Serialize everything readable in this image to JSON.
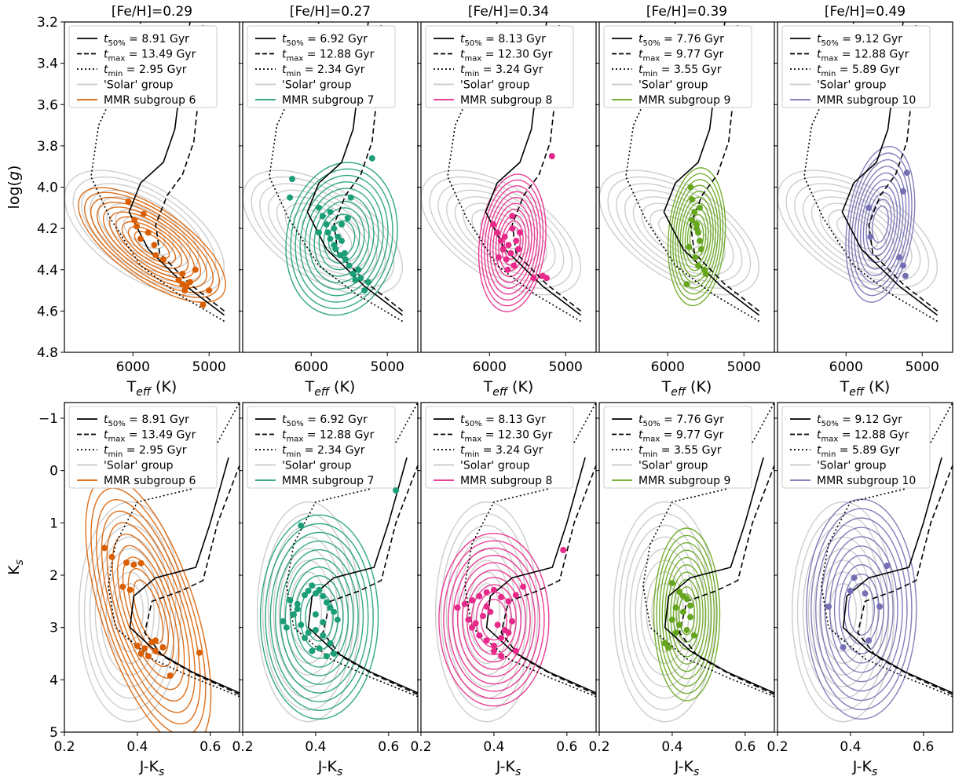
{
  "figure": {
    "tick_labels": {
      "logg_y": [
        "3.2",
        "3.4",
        "3.6",
        "3.8",
        "4.0",
        "4.2",
        "4.4",
        "4.6",
        "4.8"
      ],
      "teff_x": [
        "6000",
        "5000"
      ],
      "ks_y": [
        "−1",
        "0",
        "1",
        "2",
        "3",
        "4",
        "5"
      ],
      "jk_x": [
        "0.2",
        "0.4",
        "0.6"
      ]
    }
  },
  "chart_data": [
    {
      "type": "scatter",
      "row": "top",
      "title": "[Fe/H]=0.29",
      "xlabel": "T_eff (K)",
      "ylabel": "log(g)",
      "xlim": [
        6900,
        4600
      ],
      "ylim": [
        4.8,
        3.2
      ],
      "colors": {
        "subgroup": "#d95f02",
        "solar": "#c8c8c8",
        "iso": "#000000"
      },
      "legend": {
        "position": "top-left",
        "entries": [
          "t_50% = 8.91 Gyr",
          "t_max = 13.49 Gyr",
          "t_min = 2.95 Gyr",
          "'Solar' group",
          "MMR subgroup 6"
        ]
      },
      "series": [
        {
          "name": "MMR subgroup 6",
          "kind": "points",
          "x": [
            6060,
            5980,
            5860,
            5950,
            5900,
            5800,
            5720,
            5400,
            5350,
            5300,
            5350,
            5320,
            5250,
            5180,
            5000,
            5080,
            5600,
            5700
          ],
          "y": [
            4.07,
            4.16,
            4.13,
            4.19,
            4.25,
            4.22,
            4.28,
            4.45,
            4.47,
            4.48,
            4.42,
            4.5,
            4.46,
            4.4,
            4.5,
            4.57,
            4.35,
            4.33
          ]
        }
      ]
    },
    {
      "type": "scatter",
      "row": "top",
      "title": "[Fe/H]=0.27",
      "xlabel": "T_eff (K)",
      "ylabel": "",
      "xlim": [
        6900,
        4600
      ],
      "ylim": [
        4.8,
        3.2
      ],
      "colors": {
        "subgroup": "#1b9e77",
        "solar": "#c8c8c8",
        "iso": "#000000"
      },
      "legend": {
        "position": "top-left",
        "entries": [
          "t_50% = 6.92 Gyr",
          "t_max = 12.88 Gyr",
          "t_min = 2.34 Gyr",
          "'Solar' group",
          "MMR subgroup 7"
        ]
      },
      "series": [
        {
          "name": "MMR subgroup 7",
          "kind": "points",
          "x": [
            6250,
            6280,
            5900,
            5850,
            5800,
            5780,
            5750,
            5700,
            5700,
            5650,
            5680,
            5600,
            5620,
            5550,
            5500,
            5450,
            5420,
            5380,
            5350,
            5300,
            5250,
            5200,
            5520,
            5480,
            5750,
            5900,
            5600,
            5560
          ],
          "y": [
            3.96,
            4.05,
            4.1,
            4.14,
            4.18,
            4.22,
            4.25,
            4.2,
            4.28,
            4.24,
            4.3,
            4.26,
            4.33,
            4.35,
            4.38,
            4.42,
            4.45,
            4.4,
            4.44,
            4.5,
            4.46,
            3.86,
            4.15,
            4.05,
            4.12,
            4.22,
            4.18,
            4.32
          ]
        }
      ]
    },
    {
      "type": "scatter",
      "row": "top",
      "title": "[Fe/H]=0.34",
      "xlabel": "T_eff (K)",
      "ylabel": "",
      "xlim": [
        6900,
        4600
      ],
      "ylim": [
        4.8,
        3.2
      ],
      "colors": {
        "subgroup": "#e7298a",
        "solar": "#c8c8c8",
        "iso": "#000000"
      },
      "legend": {
        "position": "top-left",
        "entries": [
          "t_50% = 8.13 Gyr",
          "t_max = 12.30 Gyr",
          "t_min = 3.24 Gyr",
          "'Solar' group",
          "MMR subgroup 8"
        ]
      },
      "series": [
        {
          "name": "MMR subgroup 8",
          "kind": "points",
          "x": [
            5950,
            5900,
            5850,
            5820,
            5800,
            5780,
            5750,
            5720,
            5700,
            5680,
            5650,
            5620,
            5600,
            5880,
            5760,
            5700,
            5300,
            5250,
            5420,
            5180
          ],
          "y": [
            4.18,
            4.22,
            4.26,
            4.3,
            4.24,
            4.35,
            4.28,
            4.32,
            4.2,
            4.38,
            4.26,
            4.3,
            4.22,
            4.34,
            4.4,
            4.14,
            4.43,
            4.44,
            4.44,
            3.85
          ]
        }
      ]
    },
    {
      "type": "scatter",
      "row": "top",
      "title": "[Fe/H]=0.39",
      "xlabel": "T_eff (K)",
      "ylabel": "",
      "xlim": [
        6900,
        4600
      ],
      "ylim": [
        4.8,
        3.2
      ],
      "colors": {
        "subgroup": "#66a61e",
        "solar": "#c8c8c8",
        "iso": "#000000"
      },
      "legend": {
        "position": "top-left",
        "entries": [
          "t_50% = 7.76 Gyr",
          "t_max = 9.77 Gyr",
          "t_min = 3.55 Gyr",
          "'Solar' group",
          "MMR subgroup 9"
        ]
      },
      "series": [
        {
          "name": "MMR subgroup 9",
          "kind": "points",
          "x": [
            5700,
            5680,
            5650,
            5620,
            5600,
            5580,
            5560,
            5720,
            5640,
            5600,
            5520,
            5500,
            5680,
            5750,
            5580,
            5620
          ],
          "y": [
            4.0,
            4.06,
            4.12,
            4.18,
            4.22,
            4.26,
            4.3,
            4.29,
            4.34,
            4.38,
            4.4,
            4.42,
            4.16,
            4.47,
            4.1,
            4.2
          ]
        }
      ]
    },
    {
      "type": "scatter",
      "row": "top",
      "title": "[Fe/H]=0.49",
      "xlabel": "T_eff (K)",
      "ylabel": "",
      "xlim": [
        6900,
        4600
      ],
      "ylim": [
        4.8,
        3.2
      ],
      "colors": {
        "subgroup": "#7570b3",
        "solar": "#c8c8c8",
        "iso": "#000000"
      },
      "legend": {
        "position": "top-left",
        "entries": [
          "t_50% = 9.12 Gyr",
          "t_max = 12.88 Gyr",
          "t_min = 5.89 Gyr",
          "'Solar' group",
          "MMR subgroup 10"
        ]
      },
      "series": [
        {
          "name": "MMR subgroup 10",
          "kind": "points",
          "x": [
            5200,
            5250,
            5700,
            5680,
            5300,
            5250,
            5220
          ],
          "y": [
            3.93,
            4.02,
            4.1,
            4.24,
            4.34,
            4.38,
            4.43
          ]
        }
      ]
    },
    {
      "type": "scatter",
      "row": "bottom",
      "title": "",
      "xlabel": "J-K_s",
      "ylabel": "K_s",
      "xlim": [
        0.2,
        0.68
      ],
      "ylim": [
        5,
        -1.3
      ],
      "colors": {
        "subgroup": "#d95f02",
        "solar": "#c8c8c8",
        "iso": "#000000"
      },
      "legend": {
        "position": "top-left",
        "entries": [
          "t_50% = 8.91 Gyr",
          "t_max = 13.49 Gyr",
          "t_min = 2.95 Gyr",
          "'Solar' group",
          "MMR subgroup 6"
        ]
      },
      "series": [
        {
          "name": "MMR subgroup 6",
          "kind": "points",
          "x": [
            0.31,
            0.33,
            0.37,
            0.39,
            0.41,
            0.36,
            0.38,
            0.4,
            0.42,
            0.44,
            0.45,
            0.43,
            0.41,
            0.47,
            0.49,
            0.57,
            0.45
          ],
          "y": [
            1.48,
            1.65,
            1.76,
            1.8,
            1.77,
            2.22,
            2.28,
            3.35,
            3.4,
            3.28,
            3.45,
            3.55,
            3.5,
            3.38,
            3.92,
            3.48,
            3.25
          ]
        }
      ]
    },
    {
      "type": "scatter",
      "row": "bottom",
      "title": "",
      "xlabel": "J-K_s",
      "ylabel": "",
      "xlim": [
        0.2,
        0.68
      ],
      "ylim": [
        5,
        -1.3
      ],
      "colors": {
        "subgroup": "#1b9e77",
        "solar": "#c8c8c8",
        "iso": "#000000"
      },
      "legend": {
        "position": "top-left",
        "entries": [
          "t_50% = 6.92 Gyr",
          "t_max = 12.88 Gyr",
          "t_min = 2.34 Gyr",
          "'Solar' group",
          "MMR subgroup 7"
        ]
      },
      "series": [
        {
          "name": "MMR subgroup 7",
          "kind": "points",
          "x": [
            0.36,
            0.62,
            0.33,
            0.35,
            0.37,
            0.38,
            0.39,
            0.4,
            0.41,
            0.42,
            0.43,
            0.44,
            0.45,
            0.46,
            0.31,
            0.32,
            0.34,
            0.36,
            0.38,
            0.4,
            0.42,
            0.44,
            0.41,
            0.39,
            0.37,
            0.43,
            0.45,
            0.35,
            0.4,
            0.42
          ],
          "y": [
            1.05,
            0.38,
            2.48,
            2.55,
            2.38,
            2.3,
            2.2,
            2.35,
            2.28,
            2.4,
            2.52,
            2.62,
            2.7,
            2.85,
            2.88,
            3.0,
            2.75,
            2.95,
            3.1,
            3.05,
            3.15,
            3.3,
            3.4,
            3.45,
            3.2,
            3.55,
            3.5,
            2.65,
            2.75,
            2.9
          ]
        }
      ]
    },
    {
      "type": "scatter",
      "row": "bottom",
      "title": "",
      "xlabel": "J-K_s",
      "ylabel": "",
      "xlim": [
        0.2,
        0.68
      ],
      "ylim": [
        5,
        -1.3
      ],
      "colors": {
        "subgroup": "#e7298a",
        "solar": "#c8c8c8",
        "iso": "#000000"
      },
      "legend": {
        "position": "top-left",
        "entries": [
          "t_50% = 8.13 Gyr",
          "t_max = 12.30 Gyr",
          "t_min = 3.24 Gyr",
          "'Solar' group",
          "MMR subgroup 8"
        ]
      },
      "series": [
        {
          "name": "MMR subgroup 8",
          "kind": "points",
          "x": [
            0.59,
            0.3,
            0.32,
            0.34,
            0.36,
            0.38,
            0.4,
            0.42,
            0.44,
            0.46,
            0.48,
            0.33,
            0.35,
            0.37,
            0.39,
            0.41,
            0.43,
            0.45,
            0.36,
            0.38,
            0.4,
            0.42,
            0.44,
            0.4,
            0.42,
            0.46,
            0.38,
            0.34
          ],
          "y": [
            1.52,
            2.62,
            2.55,
            2.48,
            2.4,
            2.33,
            2.28,
            2.42,
            2.5,
            2.38,
            2.22,
            2.85,
            2.92,
            2.78,
            2.7,
            2.95,
            3.05,
            2.88,
            3.15,
            3.25,
            3.35,
            3.2,
            3.1,
            3.45,
            3.55,
            3.45,
            2.6,
            3.0
          ]
        }
      ]
    },
    {
      "type": "scatter",
      "row": "bottom",
      "title": "",
      "xlabel": "J-K_s",
      "ylabel": "",
      "xlim": [
        0.2,
        0.68
      ],
      "ylim": [
        5,
        -1.3
      ],
      "colors": {
        "subgroup": "#66a61e",
        "solar": "#c8c8c8",
        "iso": "#000000"
      },
      "legend": {
        "position": "top-left",
        "entries": [
          "t_50% = 7.76 Gyr",
          "t_max = 9.77 Gyr",
          "t_min = 3.55 Gyr",
          "'Solar' group",
          "MMR subgroup 9"
        ]
      },
      "series": [
        {
          "name": "MMR subgroup 9",
          "kind": "points",
          "x": [
            0.4,
            0.42,
            0.44,
            0.45,
            0.43,
            0.41,
            0.4,
            0.42,
            0.44,
            0.46,
            0.38,
            0.39,
            0.43,
            0.45,
            0.41
          ],
          "y": [
            2.15,
            2.32,
            2.45,
            2.58,
            2.7,
            2.62,
            2.85,
            2.95,
            3.05,
            3.15,
            3.3,
            3.38,
            2.4,
            2.8,
            3.1
          ]
        }
      ]
    },
    {
      "type": "scatter",
      "row": "bottom",
      "title": "",
      "xlabel": "J-K_s",
      "ylabel": "",
      "xlim": [
        0.2,
        0.68
      ],
      "ylim": [
        5,
        -1.3
      ],
      "colors": {
        "subgroup": "#7570b3",
        "solar": "#c8c8c8",
        "iso": "#000000"
      },
      "legend": {
        "position": "top-left",
        "entries": [
          "t_50% = 9.12 Gyr",
          "t_max = 12.88 Gyr",
          "t_min = 5.89 Gyr",
          "'Solar' group",
          "MMR subgroup 10"
        ]
      },
      "series": [
        {
          "name": "MMR subgroup 10",
          "kind": "points",
          "x": [
            0.34,
            0.4,
            0.41,
            0.44,
            0.48,
            0.5,
            0.38,
            0.45
          ],
          "y": [
            2.6,
            2.3,
            2.05,
            2.35,
            2.6,
            1.82,
            3.38,
            3.25
          ]
        }
      ]
    }
  ],
  "isochrones": {
    "top_iso50": [
      [
        4800,
        4.62
      ],
      [
        5300,
        4.48
      ],
      [
        5800,
        4.3
      ],
      [
        6050,
        4.12
      ],
      [
        5900,
        3.98
      ],
      [
        5600,
        3.88
      ],
      [
        5450,
        3.72
      ],
      [
        5350,
        3.42
      ],
      [
        5250,
        3.2
      ]
    ],
    "top_isomax": [
      [
        4800,
        4.6
      ],
      [
        5250,
        4.47
      ],
      [
        5650,
        4.32
      ],
      [
        5700,
        4.18
      ],
      [
        5550,
        4.04
      ],
      [
        5350,
        3.94
      ],
      [
        5200,
        3.78
      ],
      [
        5120,
        3.5
      ],
      [
        5080,
        3.2
      ]
    ],
    "top_isomin": [
      [
        4800,
        4.65
      ],
      [
        5400,
        4.52
      ],
      [
        5900,
        4.38
      ],
      [
        6300,
        4.15
      ],
      [
        6550,
        3.95
      ],
      [
        6450,
        3.7
      ],
      [
        6300,
        3.58
      ],
      [
        6050,
        3.4
      ],
      [
        5900,
        3.2
      ]
    ],
    "bot_iso50": [
      [
        0.68,
        4.25
      ],
      [
        0.55,
        3.85
      ],
      [
        0.45,
        3.45
      ],
      [
        0.38,
        3.0
      ],
      [
        0.39,
        2.4
      ],
      [
        0.45,
        2.05
      ],
      [
        0.56,
        1.85
      ],
      [
        0.6,
        1.0
      ],
      [
        0.65,
        -0.25
      ]
    ],
    "bot_isomax": [
      [
        0.68,
        4.28
      ],
      [
        0.56,
        3.9
      ],
      [
        0.47,
        3.55
      ],
      [
        0.42,
        3.1
      ],
      [
        0.44,
        2.5
      ],
      [
        0.52,
        2.3
      ],
      [
        0.58,
        2.1
      ],
      [
        0.62,
        1.0
      ],
      [
        0.68,
        -0.1
      ]
    ],
    "bot_isomin": [
      [
        0.68,
        4.32
      ],
      [
        0.55,
        3.95
      ],
      [
        0.44,
        3.6
      ],
      [
        0.34,
        3.0
      ],
      [
        0.32,
        2.2
      ],
      [
        0.34,
        1.4
      ],
      [
        0.4,
        0.6
      ],
      [
        0.55,
        0.35
      ],
      [
        0.68,
        -1.3
      ]
    ]
  }
}
